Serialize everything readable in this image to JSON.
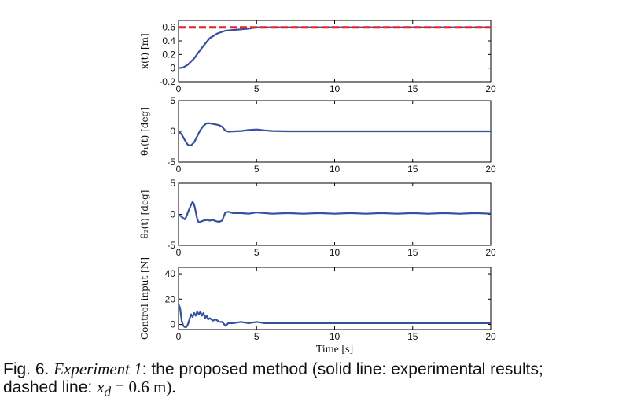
{
  "chart_data": [
    {
      "type": "line",
      "ylabel": "x(t) [m]",
      "xlim": [
        0,
        20
      ],
      "ylim": [
        -0.2,
        0.7
      ],
      "yticks": [
        "0.6",
        "0.4",
        "0.2",
        "0",
        "-0.2"
      ],
      "xticks": [
        "0",
        "5",
        "10",
        "15",
        "20"
      ],
      "series": [
        {
          "style": "solid",
          "color": "#3550a0",
          "x": [
            0,
            0.3,
            0.6,
            1.0,
            1.5,
            2.0,
            2.5,
            3.0,
            3.5,
            4.0,
            4.5,
            5.0,
            6,
            8,
            10,
            12,
            14,
            16,
            18,
            20
          ],
          "y": [
            0.0,
            0.01,
            0.05,
            0.14,
            0.3,
            0.44,
            0.51,
            0.55,
            0.56,
            0.57,
            0.58,
            0.6,
            0.6,
            0.6,
            0.6,
            0.6,
            0.6,
            0.6,
            0.6,
            0.6
          ]
        },
        {
          "style": "dashed",
          "color": "#e8202a",
          "x": [
            0,
            20
          ],
          "y": [
            0.6,
            0.6
          ]
        }
      ]
    },
    {
      "type": "line",
      "ylabel": "θ₁(t) [deg]",
      "xlim": [
        0,
        20
      ],
      "ylim": [
        -5,
        5
      ],
      "yticks": [
        "5",
        "0",
        "-5"
      ],
      "xticks": [
        "0",
        "5",
        "10",
        "15",
        "20"
      ],
      "series": [
        {
          "style": "solid",
          "color": "#3550a0",
          "x": [
            0,
            0.2,
            0.4,
            0.6,
            0.8,
            1.0,
            1.2,
            1.4,
            1.6,
            1.8,
            2.0,
            2.2,
            2.4,
            2.6,
            2.8,
            3.0,
            3.2,
            3.6,
            4.0,
            4.5,
            5.0,
            5.5,
            6.0,
            7,
            8,
            10,
            12,
            14,
            16,
            18,
            20
          ],
          "y": [
            0.0,
            -0.5,
            -1.4,
            -2.2,
            -2.3,
            -1.8,
            -0.8,
            0.2,
            0.9,
            1.3,
            1.3,
            1.2,
            1.1,
            1.0,
            0.7,
            0.1,
            -0.05,
            0.0,
            0.05,
            0.2,
            0.3,
            0.15,
            0.05,
            0.0,
            0.0,
            0.0,
            0.0,
            0.0,
            0.0,
            0.0,
            0.0
          ]
        }
      ]
    },
    {
      "type": "line",
      "ylabel": "θ₂(t) [deg]",
      "xlim": [
        0,
        20
      ],
      "ylim": [
        -5,
        5
      ],
      "yticks": [
        "5",
        "0",
        "-5"
      ],
      "xticks": [
        "0",
        "5",
        "10",
        "15",
        "20"
      ],
      "series": [
        {
          "style": "solid",
          "color": "#3550a0",
          "x": [
            0,
            0.2,
            0.4,
            0.5,
            0.6,
            0.8,
            0.9,
            1.0,
            1.1,
            1.2,
            1.3,
            1.4,
            1.6,
            1.8,
            2.0,
            2.2,
            2.4,
            2.6,
            2.8,
            2.9,
            3.0,
            3.2,
            3.5,
            4.0,
            4.5,
            5.0,
            6,
            7,
            8,
            9,
            10,
            11,
            12,
            13,
            14,
            15,
            16,
            17,
            18,
            19,
            20
          ],
          "y": [
            0.0,
            -0.4,
            -0.8,
            -0.4,
            0.3,
            1.5,
            2.0,
            1.6,
            0.5,
            -0.8,
            -1.3,
            -1.2,
            -1.0,
            -0.9,
            -1.0,
            -0.9,
            -1.1,
            -1.2,
            -1.0,
            -0.3,
            0.3,
            0.4,
            0.2,
            0.2,
            0.1,
            0.3,
            0.1,
            0.2,
            0.1,
            0.2,
            0.1,
            0.2,
            0.1,
            0.2,
            0.1,
            0.2,
            0.1,
            0.2,
            0.1,
            0.2,
            0.1
          ]
        }
      ]
    },
    {
      "type": "line",
      "ylabel": "Control input [N]",
      "xlabel": "Time [s]",
      "xlim": [
        0,
        20
      ],
      "ylim": [
        -4,
        45
      ],
      "yticks": [
        "40",
        "20",
        "0"
      ],
      "xticks": [
        "0",
        "5",
        "10",
        "15",
        "20"
      ],
      "series": [
        {
          "style": "solid",
          "color": "#3550a0",
          "x": [
            0,
            0.1,
            0.2,
            0.3,
            0.4,
            0.5,
            0.6,
            0.7,
            0.8,
            0.9,
            1.0,
            1.1,
            1.2,
            1.3,
            1.4,
            1.5,
            1.6,
            1.7,
            1.8,
            1.9,
            2.0,
            2.2,
            2.4,
            2.6,
            2.8,
            3.0,
            3.2,
            3.5,
            4.0,
            4.5,
            5.0,
            5.5,
            6.0,
            7,
            8,
            10,
            12,
            14,
            16,
            18,
            20
          ],
          "y": [
            16,
            13,
            3,
            -1,
            -2,
            -2,
            0,
            4,
            8,
            6,
            9,
            7,
            10,
            8,
            10,
            7,
            9,
            5,
            7,
            4,
            5,
            3,
            4,
            2,
            2,
            -1,
            1,
            1,
            2,
            1,
            2,
            1,
            1,
            1,
            1,
            1,
            1,
            1,
            1,
            1,
            1
          ]
        }
      ]
    }
  ],
  "caption": {
    "prefix": "Fig. 6.",
    "experiment": "Experiment 1",
    "text": ": the proposed method (solid line: experimental results;",
    "line2_pre": "dashed line: ",
    "var": "x",
    "sub": "d",
    "eq": " = 0.6 m)."
  }
}
